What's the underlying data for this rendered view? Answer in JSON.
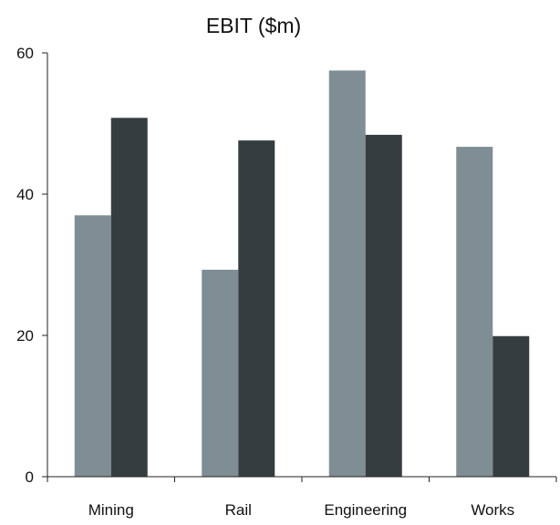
{
  "chart_data": {
    "type": "bar",
    "title": "EBIT ($m)",
    "categories": [
      "Mining",
      "Rail",
      "Engineering",
      "Works"
    ],
    "series": [
      {
        "values": [
          37,
          29.3,
          57.5,
          46.7
        ],
        "color": "#7f8e94"
      },
      {
        "values": [
          50.8,
          47.6,
          48.4,
          19.9
        ],
        "color": "#363d40"
      }
    ],
    "ylim": [
      0,
      60
    ],
    "yticks": [
      0,
      20,
      40,
      60
    ],
    "grid": false,
    "legend": "none"
  }
}
